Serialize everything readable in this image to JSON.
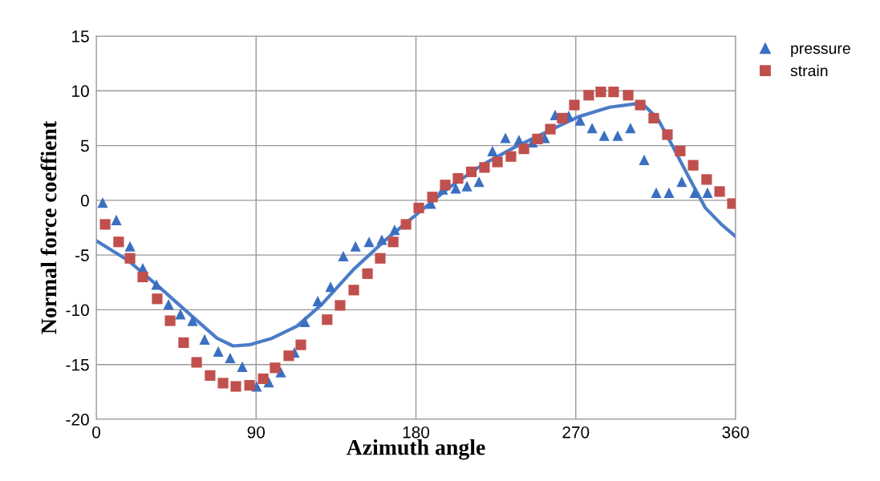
{
  "chart_data": {
    "type": "scatter",
    "xlabel": "Azimuth angle",
    "ylabel": "Normal force coeffient",
    "xlim": [
      0,
      360
    ],
    "xticks": [
      0,
      90,
      180,
      270,
      360
    ],
    "ylim": [
      -20,
      15
    ],
    "yticks": [
      -20,
      -15,
      -10,
      -5,
      0,
      5,
      10,
      15
    ],
    "grid": true,
    "legend": "top right",
    "series": [
      {
        "type": "line",
        "color": "#4a7cc8",
        "marker": "none",
        "line_style": "solid",
        "x": [
          0,
          18,
          36,
          54,
          68,
          77,
          86,
          99,
          113,
          127,
          145,
          163,
          181,
          199,
          217,
          235,
          253,
          271,
          289,
          303,
          309,
          316,
          325,
          334,
          343,
          352,
          360
        ],
        "values": [
          -3.7,
          -5.5,
          -8,
          -10.6,
          -12.6,
          -13.3,
          -13.2,
          -12.6,
          -11.5,
          -9.5,
          -6.3,
          -3.6,
          -1.2,
          1.2,
          3.2,
          4.8,
          6.2,
          7.6,
          8.5,
          8.8,
          8.6,
          7.5,
          4.8,
          2,
          -0.7,
          -2.2,
          -3.3
        ]
      },
      {
        "name": "pressure",
        "color": "#3b6fc0",
        "marker": "triangle",
        "x": [
          3.6,
          11.3,
          19,
          26.2,
          33.9,
          40.7,
          47.4,
          54.2,
          61,
          68.7,
          75.4,
          82.2,
          90.3,
          97.1,
          103.9,
          111.6,
          117.4,
          124.7,
          131.9,
          139.1,
          146,
          153.6,
          160.8,
          168,
          175.3,
          181.6,
          188.4,
          195.1,
          202.4,
          208.7,
          215.5,
          223.1,
          230.4,
          238,
          245.7,
          252.5,
          258.4,
          266,
          272.4,
          279.2,
          286,
          293.6,
          300.8,
          308.5,
          315.3,
          322.5,
          329.7,
          337,
          344.2
        ],
        "values": [
          -0.2,
          -1.8,
          -4.2,
          -6.2,
          -7.7,
          -9.5,
          -10.4,
          -11,
          -12.7,
          -13.8,
          -14.4,
          -15.2,
          -17,
          -16.6,
          -15.7,
          -13.9,
          -11.1,
          -9.2,
          -7.9,
          -5.1,
          -4.2,
          -3.8,
          -3.6,
          -2.7,
          null,
          null,
          -0.3,
          1,
          1.1,
          1.3,
          1.7,
          4.5,
          5.7,
          5.5,
          5.3,
          5.7,
          7.8,
          7.7,
          7.3,
          6.6,
          5.9,
          5.9,
          6.6,
          3.7,
          0.7,
          0.7,
          1.7,
          0.7,
          0.7
        ]
      },
      {
        "name": "strain",
        "color": "#c0504d",
        "marker": "square",
        "x": [
          5,
          12.6,
          19,
          26.2,
          34.3,
          41.6,
          49.2,
          56.5,
          64.1,
          71.4,
          78.6,
          86.3,
          94,
          100.7,
          108.4,
          115.2,
          130,
          137.3,
          145,
          152.7,
          159.9,
          167.2,
          174.4,
          181.6,
          189.3,
          196.5,
          203.7,
          211.2,
          218.6,
          225.9,
          233.5,
          240.8,
          248.4,
          255.7,
          262.4,
          269.2,
          277.3,
          284.1,
          291.3,
          299.5,
          306.3,
          313.9,
          321.6,
          328.8,
          336.1,
          343.7,
          351,
          358.2
        ],
        "values": [
          -2.2,
          -3.8,
          -5.3,
          -7,
          -9,
          -11,
          -13,
          -14.8,
          -16,
          -16.7,
          -17,
          -16.9,
          -16.3,
          -15.3,
          -14.2,
          -13.2,
          -10.9,
          -9.6,
          -8.2,
          -6.7,
          -5.3,
          -3.8,
          -2.2,
          -0.7,
          0.3,
          1.4,
          2,
          2.6,
          3,
          3.5,
          4,
          4.7,
          5.6,
          6.5,
          7.5,
          8.7,
          9.6,
          9.9,
          9.9,
          9.6,
          8.7,
          7.5,
          6,
          4.5,
          3.2,
          1.9,
          0.8,
          -0.3
        ]
      }
    ]
  }
}
